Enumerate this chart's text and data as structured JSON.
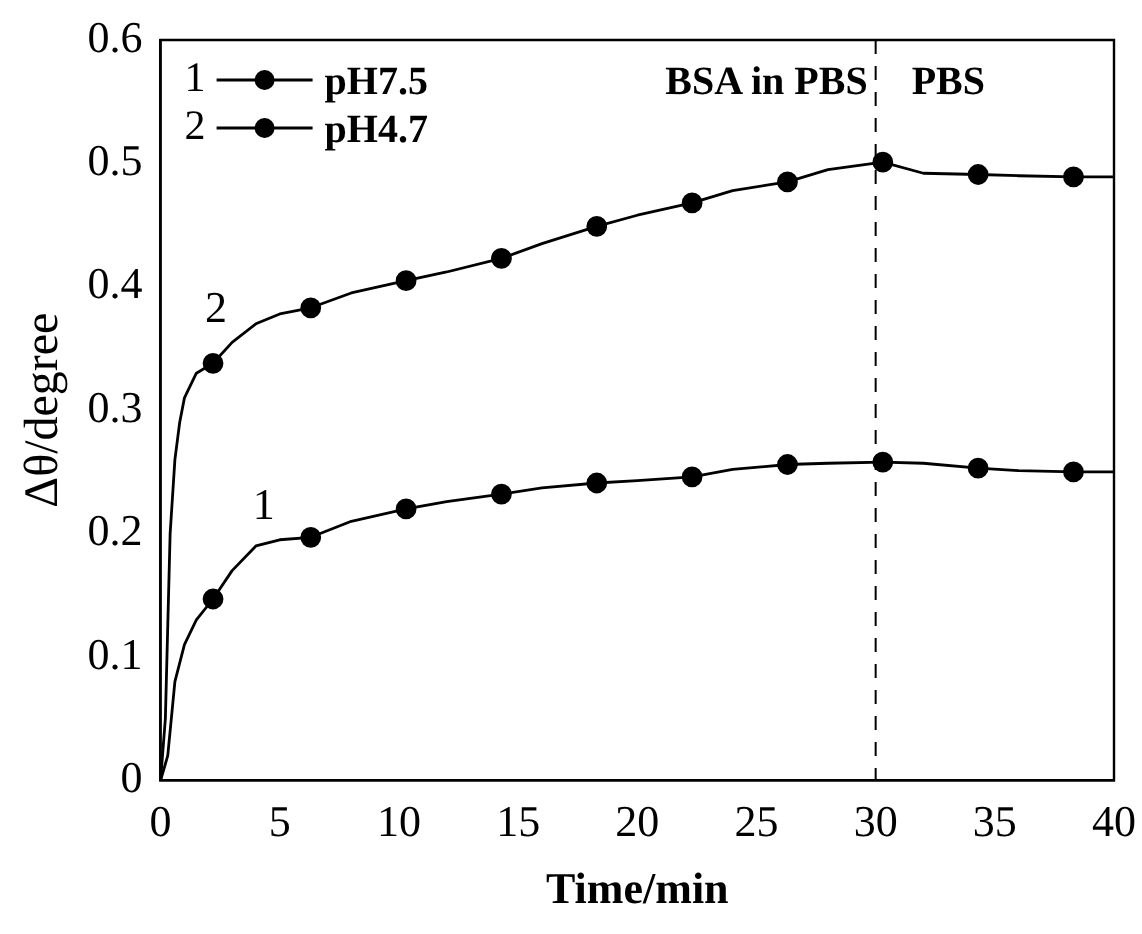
{
  "chart_data": {
    "type": "line",
    "xlabel": "Time/min",
    "ylabel": "Δθ/degree",
    "xlim": [
      0,
      40
    ],
    "xticks": [
      0,
      5,
      10,
      15,
      20,
      25,
      30,
      35,
      40
    ],
    "ylim": [
      0,
      0.6
    ],
    "yticks": [
      0,
      0.1,
      0.2,
      0.3,
      0.4,
      0.5,
      0.6
    ],
    "grid": false,
    "legend": "top left",
    "line_style": "solid",
    "series": [
      {
        "name": "pH7.5",
        "color": "#000000",
        "type": "line",
        "marker": "none",
        "x": [
          0,
          0.3,
          0.6,
          1,
          1.5,
          2.2,
          3,
          4,
          5,
          6.3,
          8,
          10.3,
          12,
          14.3,
          16,
          18.3,
          20,
          22.3,
          24,
          26.3,
          28,
          30.3,
          32,
          34.3,
          36,
          38.3,
          40
        ],
        "values": [
          0,
          0.02,
          0.08,
          0.11,
          0.13,
          0.147,
          0.17,
          0.19,
          0.195,
          0.197,
          0.21,
          0.22,
          0.226,
          0.232,
          0.237,
          0.241,
          0.243,
          0.246,
          0.252,
          0.256,
          0.257,
          0.258,
          0.257,
          0.253,
          0.251,
          0.25,
          0.25
        ]
      },
      {
        "color": "#000000",
        "type": "scatter",
        "marker": "circle",
        "x": [
          2.2,
          6.3,
          10.3,
          14.3,
          18.3,
          22.3,
          26.3,
          30.3,
          34.3,
          38.3
        ],
        "values": [
          0.147,
          0.197,
          0.22,
          0.232,
          0.241,
          0.246,
          0.256,
          0.258,
          0.253,
          0.25
        ]
      },
      {
        "name": "pH4.7",
        "color": "#000000",
        "type": "line",
        "marker": "none",
        "x": [
          0,
          0.2,
          0.4,
          0.6,
          0.8,
          1,
          1.5,
          2.2,
          3,
          4,
          5,
          6.3,
          8,
          10.3,
          12,
          14.3,
          16,
          18.3,
          20,
          22.3,
          24,
          26.3,
          28,
          30.3,
          32,
          34.3,
          36,
          38.3,
          40
        ],
        "values": [
          0,
          0.05,
          0.2,
          0.26,
          0.29,
          0.31,
          0.33,
          0.338,
          0.355,
          0.37,
          0.378,
          0.383,
          0.395,
          0.405,
          0.412,
          0.423,
          0.435,
          0.449,
          0.458,
          0.468,
          0.478,
          0.485,
          0.495,
          0.501,
          0.492,
          0.491,
          0.49,
          0.489,
          0.489
        ]
      },
      {
        "color": "#000000",
        "type": "scatter",
        "marker": "circle",
        "x": [
          2.2,
          6.3,
          10.3,
          14.3,
          18.3,
          22.3,
          26.3,
          30.3,
          34.3,
          38.3
        ],
        "values": [
          0.338,
          0.383,
          0.405,
          0.423,
          0.449,
          0.468,
          0.485,
          0.501,
          0.491,
          0.489
        ]
      }
    ],
    "ref_lines": [
      {
        "axis": "x",
        "value": 30,
        "line_style": "dashed",
        "color": "#000000"
      }
    ],
    "annotations": [
      "1",
      "2",
      "BSA in PBS",
      "PBS",
      "1",
      "2"
    ]
  }
}
